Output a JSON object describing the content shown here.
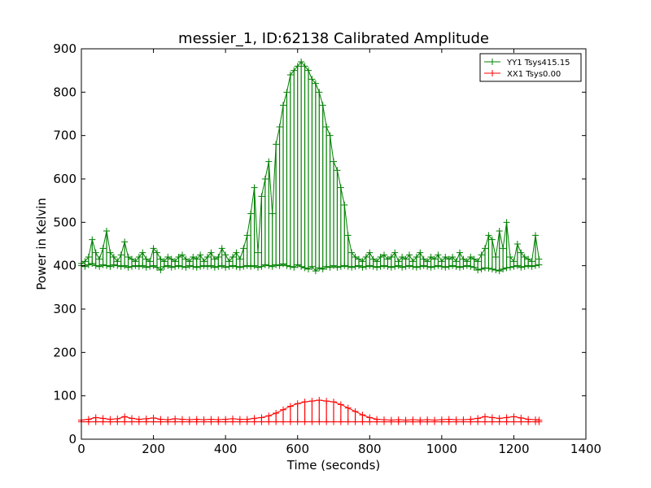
{
  "chart_data": {
    "type": "line",
    "title": "messier_1, ID:62138 Calibrated Amplitude",
    "xlabel": "Time (seconds)",
    "ylabel": "Power in Kelvin",
    "xlim": [
      0,
      1400
    ],
    "ylim": [
      0,
      900
    ],
    "xticks": [
      0,
      200,
      400,
      600,
      800,
      1000,
      1200,
      1400
    ],
    "yticks": [
      0,
      100,
      200,
      300,
      400,
      500,
      600,
      700,
      800,
      900
    ],
    "grid": false,
    "legend_position": "top-right",
    "marker": "plus",
    "series": [
      {
        "name": "YY1 Tsys415.15",
        "color": "#008000",
        "x": [
          0,
          10,
          20,
          30,
          40,
          50,
          60,
          70,
          80,
          90,
          100,
          110,
          120,
          130,
          140,
          150,
          160,
          170,
          180,
          190,
          200,
          210,
          220,
          230,
          240,
          250,
          260,
          270,
          280,
          290,
          300,
          310,
          320,
          330,
          340,
          350,
          360,
          370,
          380,
          390,
          400,
          410,
          420,
          430,
          440,
          450,
          460,
          470,
          480,
          490,
          500,
          510,
          520,
          530,
          540,
          550,
          560,
          570,
          580,
          590,
          600,
          610,
          620,
          630,
          640,
          650,
          660,
          670,
          680,
          690,
          700,
          710,
          720,
          730,
          740,
          750,
          760,
          770,
          780,
          790,
          800,
          810,
          820,
          830,
          840,
          850,
          860,
          870,
          880,
          890,
          900,
          910,
          920,
          930,
          940,
          950,
          960,
          970,
          980,
          990,
          1000,
          1010,
          1020,
          1030,
          1040,
          1050,
          1060,
          1070,
          1080,
          1090,
          1100,
          1110,
          1120,
          1130,
          1140,
          1150,
          1160,
          1170,
          1180,
          1190,
          1200,
          1210,
          1220,
          1230,
          1240,
          1250,
          1260,
          1270
        ],
        "y": [
          405,
          410,
          420,
          460,
          430,
          415,
          440,
          480,
          430,
          420,
          410,
          425,
          455,
          420,
          415,
          410,
          420,
          430,
          415,
          410,
          440,
          430,
          415,
          410,
          420,
          415,
          410,
          420,
          425,
          415,
          410,
          420,
          415,
          425,
          410,
          420,
          430,
          415,
          420,
          440,
          425,
          410,
          420,
          430,
          415,
          440,
          470,
          520,
          580,
          430,
          560,
          600,
          640,
          520,
          680,
          720,
          770,
          800,
          840,
          850,
          860,
          870,
          860,
          850,
          830,
          820,
          800,
          770,
          720,
          700,
          640,
          620,
          580,
          540,
          470,
          430,
          420,
          415,
          410,
          420,
          430,
          415,
          410,
          420,
          425,
          415,
          420,
          430,
          410,
          420,
          415,
          425,
          410,
          420,
          430,
          415,
          410,
          420,
          415,
          425,
          410,
          420,
          415,
          420,
          410,
          430,
          415,
          410,
          420,
          415,
          410,
          425,
          440,
          470,
          460,
          420,
          480,
          440,
          500,
          420,
          410,
          450,
          430,
          420,
          415,
          410,
          470,
          415
        ],
        "y_low": [
          400,
          398,
          402,
          405,
          400,
          398,
          402,
          400,
          398,
          402,
          400,
          398,
          400,
          396,
          398,
          400,
          398,
          400,
          396,
          398,
          400,
          396,
          390,
          398,
          400,
          396,
          398,
          400,
          398,
          396,
          400,
          398,
          396,
          398,
          400,
          398,
          400,
          396,
          398,
          400,
          396,
          398,
          400,
          398,
          396,
          398,
          400,
          398,
          400,
          396,
          398,
          402,
          400,
          398,
          402,
          400,
          404,
          400,
          398,
          396,
          402,
          398,
          395,
          392,
          398,
          388,
          395,
          392,
          398,
          396,
          400,
          396,
          398,
          400,
          398,
          396,
          398,
          400,
          396,
          398,
          400,
          398,
          396,
          398,
          400,
          398,
          396,
          398,
          400,
          396,
          398,
          400,
          398,
          396,
          398,
          400,
          398,
          396,
          398,
          400,
          398,
          396,
          398,
          400,
          398,
          396,
          398,
          400,
          398,
          396,
          390,
          392,
          395,
          394,
          392,
          390,
          388,
          392,
          395,
          396,
          398,
          400,
          396,
          398,
          400,
          398,
          400,
          402
        ]
      },
      {
        "name": "XX1 Tsys0.00",
        "color": "#ff0000",
        "x": [
          0,
          20,
          40,
          60,
          80,
          100,
          120,
          140,
          160,
          180,
          200,
          220,
          240,
          260,
          280,
          300,
          320,
          340,
          360,
          380,
          400,
          420,
          440,
          460,
          480,
          500,
          520,
          540,
          560,
          580,
          600,
          620,
          640,
          660,
          680,
          700,
          720,
          740,
          760,
          780,
          800,
          820,
          840,
          860,
          880,
          900,
          920,
          940,
          960,
          980,
          1000,
          1020,
          1040,
          1060,
          1080,
          1100,
          1120,
          1140,
          1160,
          1180,
          1200,
          1220,
          1240,
          1260,
          1270
        ],
        "y": [
          44,
          46,
          50,
          48,
          46,
          47,
          52,
          48,
          46,
          47,
          49,
          46,
          45,
          47,
          46,
          45,
          46,
          45,
          46,
          45,
          46,
          47,
          46,
          46,
          48,
          50,
          54,
          60,
          68,
          76,
          82,
          86,
          88,
          90,
          88,
          86,
          80,
          72,
          64,
          56,
          50,
          46,
          45,
          44,
          45,
          44,
          45,
          44,
          45,
          44,
          45,
          46,
          45,
          45,
          46,
          48,
          52,
          50,
          48,
          50,
          52,
          49,
          46,
          45,
          44
        ],
        "y_low": [
          40,
          40,
          40,
          40,
          40,
          40,
          40,
          40,
          40,
          40,
          40,
          40,
          40,
          40,
          40,
          40,
          40,
          40,
          40,
          40,
          40,
          40,
          40,
          40,
          40,
          40,
          40,
          40,
          40,
          40,
          40,
          40,
          40,
          40,
          40,
          40,
          40,
          40,
          40,
          40,
          40,
          40,
          40,
          40,
          40,
          40,
          40,
          40,
          40,
          40,
          40,
          40,
          40,
          40,
          40,
          40,
          40,
          40,
          40,
          40,
          40,
          40,
          40,
          40,
          40
        ]
      }
    ]
  }
}
